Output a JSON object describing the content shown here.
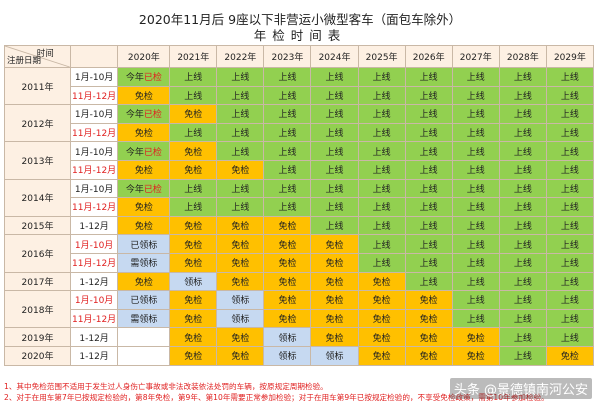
{
  "title": {
    "line1": "2020年11月后 9座以下非营运小微型客车（面包车除外）",
    "line2": "年检时间表"
  },
  "header": {
    "time_label": "时间",
    "reg_label": "注册日期",
    "years": [
      "2020年",
      "2021年",
      "2022年",
      "2023年",
      "2024年",
      "2025年",
      "2026年",
      "2027年",
      "2028年",
      "2029年"
    ]
  },
  "colors": {
    "green": "#92d050",
    "yellow": "#ffc000",
    "blue": "#c6d9f1",
    "header": "#fdf0e3",
    "red": "#e02020"
  },
  "groups": [
    {
      "year": "2011年",
      "rows": [
        {
          "period": "1月-10月",
          "period_red": false,
          "cells": [
            [
              "今年已检",
              "green"
            ],
            [
              "上线",
              "green"
            ],
            [
              "上线",
              "green"
            ],
            [
              "上线",
              "green"
            ],
            [
              "上线",
              "green"
            ],
            [
              "上线",
              "green"
            ],
            [
              "上线",
              "green"
            ],
            [
              "上线",
              "green"
            ],
            [
              "上线",
              "green"
            ],
            [
              "上线",
              "green"
            ]
          ]
        },
        {
          "period": "11月-12月",
          "period_red": true,
          "cells": [
            [
              "免检",
              "yellow"
            ],
            [
              "上线",
              "green"
            ],
            [
              "上线",
              "green"
            ],
            [
              "上线",
              "green"
            ],
            [
              "上线",
              "green"
            ],
            [
              "上线",
              "green"
            ],
            [
              "上线",
              "green"
            ],
            [
              "上线",
              "green"
            ],
            [
              "上线",
              "green"
            ],
            [
              "上线",
              "green"
            ]
          ]
        }
      ]
    },
    {
      "year": "2012年",
      "rows": [
        {
          "period": "1月-10月",
          "period_red": false,
          "cells": [
            [
              "今年已检",
              "green"
            ],
            [
              "免检",
              "yellow"
            ],
            [
              "上线",
              "green"
            ],
            [
              "上线",
              "green"
            ],
            [
              "上线",
              "green"
            ],
            [
              "上线",
              "green"
            ],
            [
              "上线",
              "green"
            ],
            [
              "上线",
              "green"
            ],
            [
              "上线",
              "green"
            ],
            [
              "上线",
              "green"
            ]
          ]
        },
        {
          "period": "11月-12月",
          "period_red": true,
          "cells": [
            [
              "免检",
              "yellow"
            ],
            [
              "上线",
              "green"
            ],
            [
              "上线",
              "green"
            ],
            [
              "上线",
              "green"
            ],
            [
              "上线",
              "green"
            ],
            [
              "上线",
              "green"
            ],
            [
              "上线",
              "green"
            ],
            [
              "上线",
              "green"
            ],
            [
              "上线",
              "green"
            ],
            [
              "上线",
              "green"
            ]
          ]
        }
      ]
    },
    {
      "year": "2013年",
      "rows": [
        {
          "period": "1月-10月",
          "period_red": false,
          "cells": [
            [
              "今年已检",
              "green"
            ],
            [
              "免检",
              "yellow"
            ],
            [
              "上线",
              "green"
            ],
            [
              "上线",
              "green"
            ],
            [
              "上线",
              "green"
            ],
            [
              "上线",
              "green"
            ],
            [
              "上线",
              "green"
            ],
            [
              "上线",
              "green"
            ],
            [
              "上线",
              "green"
            ],
            [
              "上线",
              "green"
            ]
          ]
        },
        {
          "period": "11月-12月",
          "period_red": true,
          "cells": [
            [
              "免检",
              "yellow"
            ],
            [
              "免检",
              "yellow"
            ],
            [
              "免检",
              "yellow"
            ],
            [
              "上线",
              "green"
            ],
            [
              "上线",
              "green"
            ],
            [
              "上线",
              "green"
            ],
            [
              "上线",
              "green"
            ],
            [
              "上线",
              "green"
            ],
            [
              "上线",
              "green"
            ],
            [
              "上线",
              "green"
            ]
          ]
        }
      ]
    },
    {
      "year": "2014年",
      "rows": [
        {
          "period": "1月-10月",
          "period_red": false,
          "cells": [
            [
              "今年已检",
              "green"
            ],
            [
              "上线",
              "green"
            ],
            [
              "上线",
              "green"
            ],
            [
              "上线",
              "green"
            ],
            [
              "上线",
              "green"
            ],
            [
              "上线",
              "green"
            ],
            [
              "上线",
              "green"
            ],
            [
              "上线",
              "green"
            ],
            [
              "上线",
              "green"
            ],
            [
              "上线",
              "green"
            ]
          ]
        },
        {
          "period": "11月-12月",
          "period_red": true,
          "cells": [
            [
              "免检",
              "yellow"
            ],
            [
              "上线",
              "green"
            ],
            [
              "上线",
              "green"
            ],
            [
              "上线",
              "green"
            ],
            [
              "上线",
              "green"
            ],
            [
              "上线",
              "green"
            ],
            [
              "上线",
              "green"
            ],
            [
              "上线",
              "green"
            ],
            [
              "上线",
              "green"
            ],
            [
              "上线",
              "green"
            ]
          ]
        }
      ]
    },
    {
      "year": "2015年",
      "rows": [
        {
          "period": "1-12月",
          "period_red": false,
          "cells": [
            [
              "免检",
              "yellow"
            ],
            [
              "免检",
              "yellow"
            ],
            [
              "免检",
              "yellow"
            ],
            [
              "免检",
              "yellow"
            ],
            [
              "上线",
              "green"
            ],
            [
              "上线",
              "green"
            ],
            [
              "上线",
              "green"
            ],
            [
              "上线",
              "green"
            ],
            [
              "上线",
              "green"
            ],
            [
              "上线",
              "green"
            ]
          ]
        }
      ]
    },
    {
      "year": "2016年",
      "rows": [
        {
          "period": "1月-10月",
          "period_red": true,
          "cells": [
            [
              "已领标",
              "blue"
            ],
            [
              "免检",
              "yellow"
            ],
            [
              "免检",
              "yellow"
            ],
            [
              "免检",
              "yellow"
            ],
            [
              "免检",
              "yellow"
            ],
            [
              "上线",
              "green"
            ],
            [
              "上线",
              "green"
            ],
            [
              "上线",
              "green"
            ],
            [
              "上线",
              "green"
            ],
            [
              "上线",
              "green"
            ]
          ]
        },
        {
          "period": "11月-12月",
          "period_red": true,
          "cells": [
            [
              "需领标",
              "blue"
            ],
            [
              "免检",
              "yellow"
            ],
            [
              "免检",
              "yellow"
            ],
            [
              "免检",
              "yellow"
            ],
            [
              "免检",
              "yellow"
            ],
            [
              "上线",
              "green"
            ],
            [
              "上线",
              "green"
            ],
            [
              "上线",
              "green"
            ],
            [
              "上线",
              "green"
            ],
            [
              "上线",
              "green"
            ]
          ]
        }
      ]
    },
    {
      "year": "2017年",
      "rows": [
        {
          "period": "1-12月",
          "period_red": false,
          "cells": [
            [
              "免检",
              "yellow"
            ],
            [
              "领标",
              "blue"
            ],
            [
              "免检",
              "yellow"
            ],
            [
              "免检",
              "yellow"
            ],
            [
              "免检",
              "yellow"
            ],
            [
              "免检",
              "yellow"
            ],
            [
              "上线",
              "green"
            ],
            [
              "上线",
              "green"
            ],
            [
              "上线",
              "green"
            ],
            [
              "上线",
              "green"
            ]
          ]
        }
      ]
    },
    {
      "year": "2018年",
      "rows": [
        {
          "period": "1月-10月",
          "period_red": true,
          "cells": [
            [
              "已领标",
              "blue"
            ],
            [
              "免检",
              "yellow"
            ],
            [
              "领标",
              "blue"
            ],
            [
              "免检",
              "yellow"
            ],
            [
              "免检",
              "yellow"
            ],
            [
              "免检",
              "yellow"
            ],
            [
              "免检",
              "yellow"
            ],
            [
              "上线",
              "green"
            ],
            [
              "上线",
              "green"
            ],
            [
              "上线",
              "green"
            ]
          ]
        },
        {
          "period": "11月-12月",
          "period_red": true,
          "cells": [
            [
              "需领标",
              "blue"
            ],
            [
              "免检",
              "yellow"
            ],
            [
              "领标",
              "blue"
            ],
            [
              "免检",
              "yellow"
            ],
            [
              "免检",
              "yellow"
            ],
            [
              "免检",
              "yellow"
            ],
            [
              "免检",
              "yellow"
            ],
            [
              "上线",
              "green"
            ],
            [
              "上线",
              "green"
            ],
            [
              "上线",
              "green"
            ]
          ]
        }
      ]
    },
    {
      "year": "2019年",
      "rows": [
        {
          "period": "1-12月",
          "period_red": false,
          "cells": [
            [
              "",
              "white"
            ],
            [
              "免检",
              "yellow"
            ],
            [
              "免检",
              "yellow"
            ],
            [
              "领标",
              "blue"
            ],
            [
              "免检",
              "yellow"
            ],
            [
              "免检",
              "yellow"
            ],
            [
              "免检",
              "yellow"
            ],
            [
              "免检",
              "yellow"
            ],
            [
              "上线",
              "green"
            ],
            [
              "上线",
              "green"
            ]
          ]
        }
      ]
    },
    {
      "year": "2020年",
      "rows": [
        {
          "period": "1-12月",
          "period_red": false,
          "cells": [
            [
              "",
              "white"
            ],
            [
              "免检",
              "yellow"
            ],
            [
              "免检",
              "yellow"
            ],
            [
              "领标",
              "blue"
            ],
            [
              "领标",
              "blue"
            ],
            [
              "免检",
              "yellow"
            ],
            [
              "免检",
              "yellow"
            ],
            [
              "免检",
              "yellow"
            ],
            [
              "上线",
              "green"
            ],
            [
              "免检",
              "yellow"
            ]
          ]
        }
      ]
    }
  ],
  "notes": [
    "1、其中免检范围不适用于发生过人身伤亡事故或非法改装依法处罚的车辆，按原规定周期检验。",
    "2、对于在用车第7年已按规定检验的，第8年免检，第9年、第10年需要正常参加检验；对于在用车第9年已按规定检验的，不享受免检政策，需第10年参加检验。"
  ],
  "watermark": "头条 @景德镇南河公安"
}
